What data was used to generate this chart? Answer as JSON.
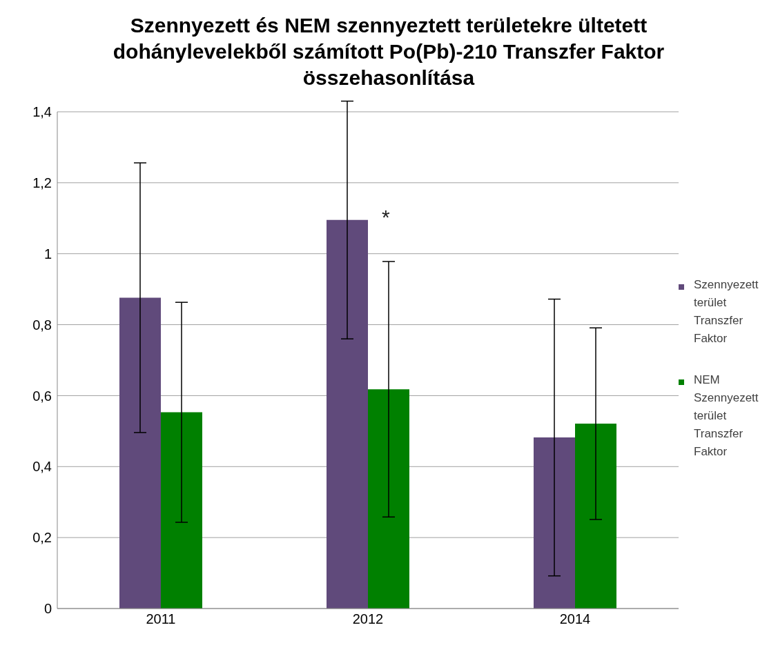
{
  "chart_data": {
    "type": "bar",
    "title": "Szennyezett és NEM szennyeztett területekre ültetett dohánylevelekből számított Po(Pb)-210 Transzfer Faktor összehasonlítása",
    "categories": [
      "2011",
      "2012",
      "2014"
    ],
    "series": [
      {
        "name": "Szennyezett terület Transzfer Faktor",
        "color": "#604a7b",
        "values": [
          0.876,
          1.095,
          0.482
        ],
        "errors": [
          0.38,
          0.335,
          0.39
        ]
      },
      {
        "name": "NEM Szennyezett terület Transzfer Faktor",
        "color": "#008000",
        "values": [
          0.553,
          0.618,
          0.521
        ],
        "errors": [
          0.31,
          0.36,
          0.27
        ]
      }
    ],
    "ylim": [
      0,
      1.4
    ],
    "yticks": [
      0,
      {
        "value": 0.2,
        "label": "0,2"
      },
      {
        "value": 0.4,
        "label": "0,4"
      },
      {
        "value": 0.6,
        "label": "0,6"
      },
      {
        "value": 0.8,
        "label": "0,8"
      },
      1,
      {
        "value": 1.2,
        "label": "1,2"
      },
      {
        "value": 1.4,
        "label": "1,4"
      }
    ],
    "grid": "y",
    "legend": "right",
    "annotations": [
      "*"
    ]
  }
}
